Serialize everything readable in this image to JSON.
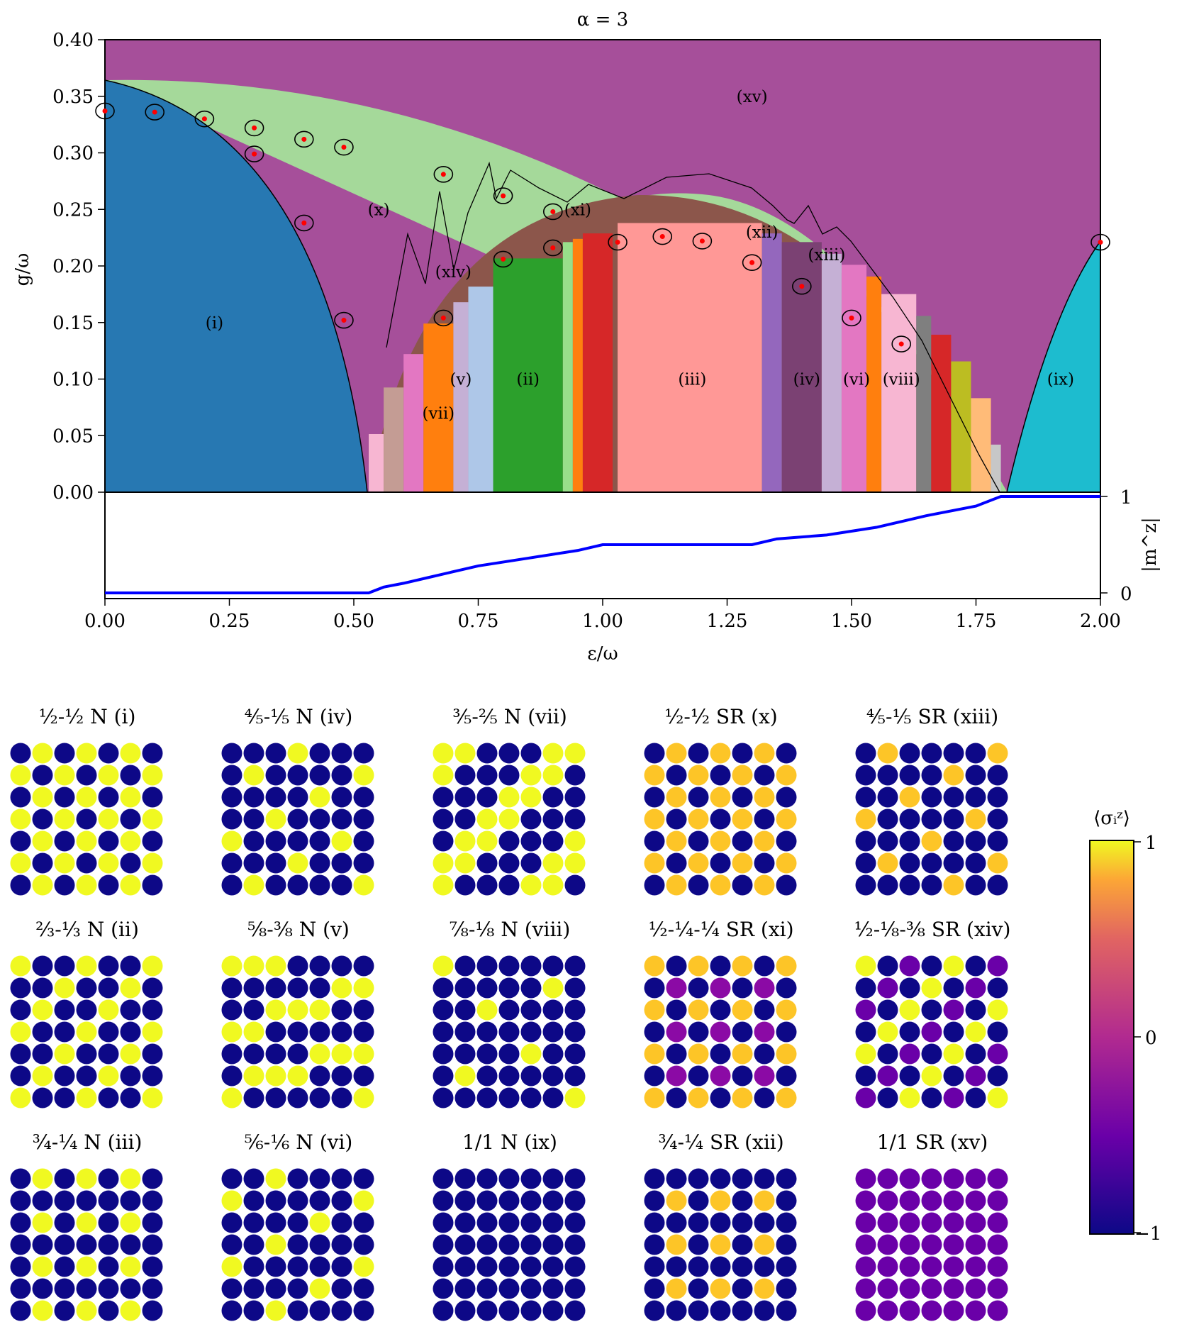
{
  "chart_data": {
    "type": "heatmap",
    "title": "α = 3",
    "xlabel": "ε/ω",
    "ylabel": "g/ω",
    "xlim": [
      0,
      2
    ],
    "ylim": [
      0,
      0.4
    ],
    "x_ticks": [
      "0.00",
      "0.25",
      "0.50",
      "0.75",
      "1.00",
      "1.25",
      "1.50",
      "1.75",
      "2.00"
    ],
    "y_ticks": [
      "0.00",
      "0.05",
      "0.10",
      "0.15",
      "0.20",
      "0.25",
      "0.30",
      "0.35",
      "0.40"
    ],
    "phase_labels": [
      {
        "text": "(i)",
        "x": 0.22,
        "y": 0.15
      },
      {
        "text": "(x)",
        "x": 0.55,
        "y": 0.25
      },
      {
        "text": "(xv)",
        "x": 1.3,
        "y": 0.35
      },
      {
        "text": "(xi)",
        "x": 0.95,
        "y": 0.25
      },
      {
        "text": "(xii)",
        "x": 1.32,
        "y": 0.23
      },
      {
        "text": "(xiii)",
        "x": 1.45,
        "y": 0.21
      },
      {
        "text": "(xiv)",
        "x": 0.7,
        "y": 0.195
      },
      {
        "text": "(v)",
        "x": 0.715,
        "y": 0.1
      },
      {
        "text": "(ii)",
        "x": 0.85,
        "y": 0.1
      },
      {
        "text": "(iii)",
        "x": 1.18,
        "y": 0.1
      },
      {
        "text": "(iv)",
        "x": 1.41,
        "y": 0.1
      },
      {
        "text": "(vi)",
        "x": 1.51,
        "y": 0.1
      },
      {
        "text": "(viii)",
        "x": 1.6,
        "y": 0.1
      },
      {
        "text": "(vii)",
        "x": 0.67,
        "y": 0.07
      },
      {
        "text": "(ix)",
        "x": 1.92,
        "y": 0.1
      }
    ],
    "marker_points": [
      [
        0.0,
        0.337
      ],
      [
        0.1,
        0.336
      ],
      [
        0.2,
        0.33
      ],
      [
        0.3,
        0.322
      ],
      [
        0.4,
        0.312
      ],
      [
        0.48,
        0.305
      ],
      [
        0.3,
        0.299
      ],
      [
        0.4,
        0.238
      ],
      [
        0.48,
        0.152
      ],
      [
        0.68,
        0.281
      ],
      [
        0.8,
        0.262
      ],
      [
        0.9,
        0.248
      ],
      [
        0.8,
        0.206
      ],
      [
        0.9,
        0.216
      ],
      [
        0.68,
        0.154
      ],
      [
        1.03,
        0.221
      ],
      [
        1.12,
        0.226
      ],
      [
        1.2,
        0.222
      ],
      [
        1.3,
        0.203
      ],
      [
        1.4,
        0.182
      ],
      [
        1.5,
        0.154
      ],
      [
        1.6,
        0.131
      ],
      [
        2.0,
        0.221
      ]
    ],
    "mz_panel": {
      "ylabel": "|m^z|",
      "y_ticks": [
        "0",
        "1"
      ],
      "steps": [
        [
          0,
          0
        ],
        [
          0.53,
          0
        ],
        [
          0.56,
          0.06
        ],
        [
          0.6,
          0.1
        ],
        [
          0.65,
          0.16
        ],
        [
          0.75,
          0.28
        ],
        [
          0.85,
          0.36
        ],
        [
          0.95,
          0.44
        ],
        [
          1.0,
          0.5
        ],
        [
          1.3,
          0.5
        ],
        [
          1.35,
          0.56
        ],
        [
          1.45,
          0.6
        ],
        [
          1.55,
          0.68
        ],
        [
          1.65,
          0.8
        ],
        [
          1.75,
          0.9
        ],
        [
          1.8,
          1
        ],
        [
          2.0,
          1
        ]
      ]
    },
    "panels": [
      {
        "frac": "½-½",
        "kind": "N",
        "id": "(i)"
      },
      {
        "frac": "⅘-⅕",
        "kind": "N",
        "id": "(iv)"
      },
      {
        "frac": "⅗-⅖",
        "kind": "N",
        "id": "(vii)"
      },
      {
        "frac": "½-½",
        "kind": "SR",
        "id": "(x)"
      },
      {
        "frac": "⅘-⅕",
        "kind": "SR",
        "id": "(xiii)"
      },
      {
        "frac": "⅔-⅓",
        "kind": "N",
        "id": "(ii)"
      },
      {
        "frac": "⅝-⅜",
        "kind": "N",
        "id": "(v)"
      },
      {
        "frac": "⅞-⅛",
        "kind": "N",
        "id": "(viii)"
      },
      {
        "frac": "½-¼-¼",
        "kind": "SR",
        "id": "(xi)"
      },
      {
        "frac": "½-⅛-⅜",
        "kind": "SR",
        "id": "(xiv)"
      },
      {
        "frac": "¾-¼",
        "kind": "N",
        "id": "(iii)"
      },
      {
        "frac": "⅚-⅙",
        "kind": "N",
        "id": "(vi)"
      },
      {
        "frac": "1/1",
        "kind": "N",
        "id": "(ix)"
      },
      {
        "frac": "¾-¼",
        "kind": "SR",
        "id": "(xii)"
      },
      {
        "frac": "1/1",
        "kind": "SR",
        "id": "(xv)"
      }
    ],
    "colorbar": {
      "label": "⟨σᵢᶻ⟩",
      "ticks": [
        "1",
        "0",
        "−1"
      ],
      "range": [
        -1,
        1
      ]
    }
  }
}
